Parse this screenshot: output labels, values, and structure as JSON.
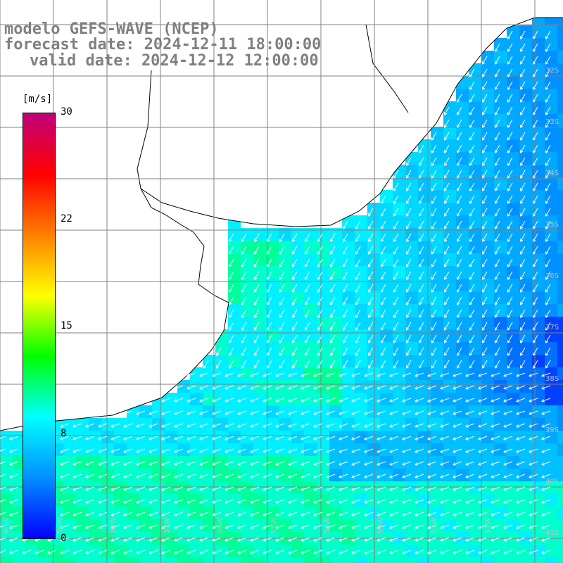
{
  "title": {
    "line1": "modelo GEFS-WAVE (NCEP)",
    "line2": "forecast date: 2024-12-11 18:00:00",
    "line3": "valid date: 2024-12-12 12:00:00"
  },
  "colorbar": {
    "unit": "[m/s]",
    "ticks": [
      "30",
      "22",
      "15",
      "8",
      "0"
    ],
    "tick_values": [
      30,
      22,
      15,
      8,
      0
    ],
    "range": [
      0,
      30
    ],
    "colors": [
      "#0000ff",
      "#0090ff",
      "#00ffff",
      "#00ff00",
      "#ffff00",
      "#ff8000",
      "#ff0000",
      "#c0007a"
    ]
  },
  "map": {
    "land_color": "#ffffff",
    "coastline_color": "#000000",
    "grid_color": "#808080",
    "arrow_color": "#ffffff",
    "lat_labels": [
      "32S",
      "33S",
      "34S",
      "35S",
      "36S",
      "37S",
      "38S",
      "39S",
      "40S",
      "41S"
    ],
    "lon_labels": [
      "60W",
      "59W",
      "58W",
      "57W",
      "56W",
      "55W",
      "54W",
      "53W",
      "52W",
      "51W"
    ],
    "dominant_wind_direction": "northeast (arrows pointing south-west)"
  }
}
